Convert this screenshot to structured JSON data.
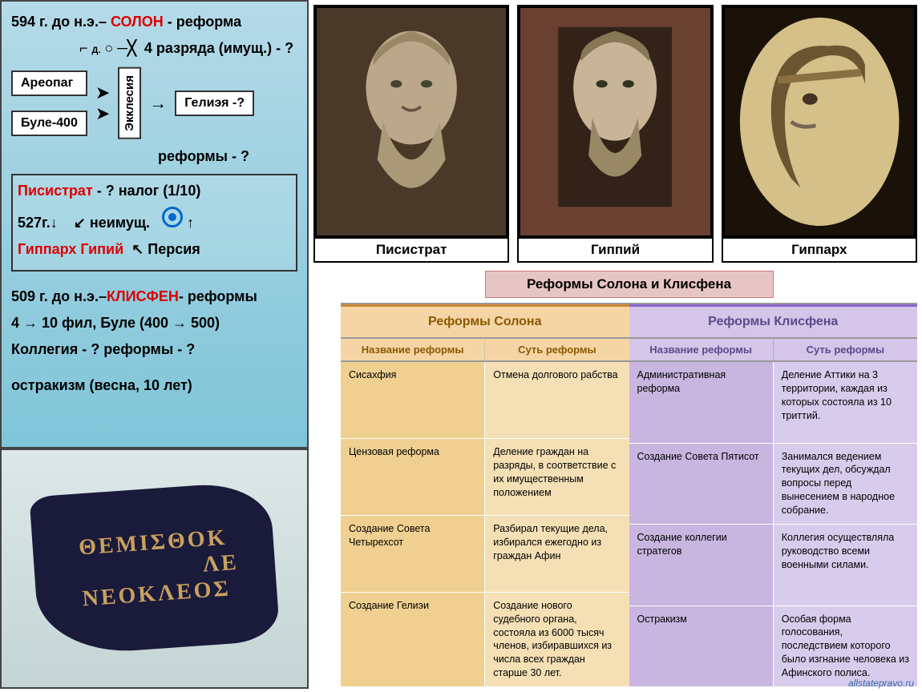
{
  "diagram": {
    "l1a": "594 г. до н.э.– ",
    "l1b": "СОЛОН",
    "l1c": " - реформа",
    "l2": "4 разряда (имущ.) - ?",
    "box_areopag": "Ареопаг",
    "box_ekklesia": "Экклесия",
    "box_heliaea": "Гелиэя -?",
    "box_bule": "Буле-400",
    "l3": "реформы - ?",
    "l4a": "Писистрат",
    "l4b": " - ?  налог (1/10)",
    "l5a": "527г.",
    "l5b": "неимущ.",
    "l6a": "Гиппарх   Гипий",
    "l6b": "Персия",
    "l7a": "509 г. до н.э.–",
    "l7b": "КЛИСФЕН",
    "l7c": "- реформы",
    "l8": "4 → 10 фил,  Буле (400 → 500)",
    "l9": "Коллегия - ?   реформы - ?",
    "l10": "остракизм  (весна, 10 лет)"
  },
  "ostracon": {
    "line1": "ΘΕΜΙΣΘΟΚ",
    "line2": "ΛΕ",
    "line3": "ΝΕΟΚΛΕΟΣ"
  },
  "busts": [
    {
      "name": "Писистрат"
    },
    {
      "name": "Гиппий"
    },
    {
      "name": "Гиппарх"
    }
  ],
  "reforms": {
    "title": "Реформы Солона и Клисфена",
    "solon": {
      "header": "Реформы Солона",
      "sub1": "Название реформы",
      "sub2": "Суть реформы",
      "rows": [
        {
          "name": "Сисахфия",
          "desc": "Отмена долгового рабства"
        },
        {
          "name": "Цензовая реформа",
          "desc": "Деление граждан на разряды, в соответствие с их имущественным положением"
        },
        {
          "name": "Создание Совета Четырехсот",
          "desc": "Разбирал текущие дела, избирался ежегодно из граждан Афин"
        },
        {
          "name": "Создание Гелиэи",
          "desc": "Создание нового судебного органа, состояла из 6000 тысяч членов, избиравшихся из числа всех граждан старше 30 лет."
        }
      ]
    },
    "klisfen": {
      "header": "Реформы Клисфена",
      "sub1": "Название реформы",
      "sub2": "Суть реформы",
      "rows": [
        {
          "name": "Административная реформа",
          "desc": "Деление Аттики на 3 территории, каждая из которых состояла из 10 триттий."
        },
        {
          "name": "Создание Совета Пятисот",
          "desc": "Занимался ведением текущих дел, обсуждал вопросы перед вынесением в народное собрание."
        },
        {
          "name": "Создание коллегии стратегов",
          "desc": "Коллегия осуществляла руководство всеми военными силами."
        },
        {
          "name": "Остракизм",
          "desc": "Особая форма голосования, последствием которого было изгнание человека из Афинского полиса."
        }
      ]
    },
    "credit": "allstatepravo.ru"
  }
}
